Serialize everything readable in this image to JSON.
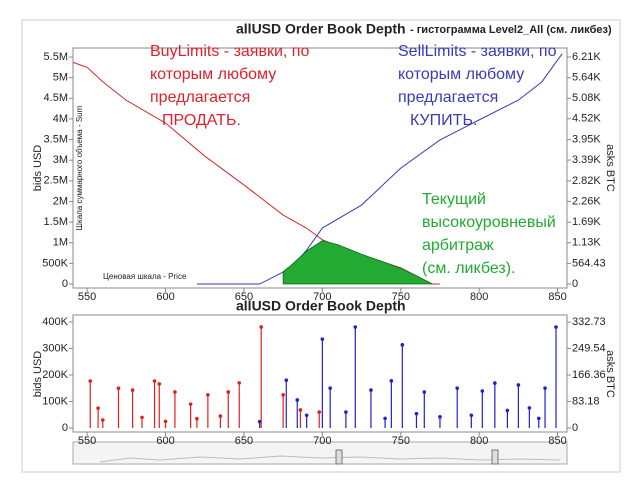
{
  "chart_data": [
    {
      "type": "line",
      "title": "allUSD Order Book Depth",
      "subtitle": "- гистограмма Level2_All (см. ликбез)",
      "y_label": "bids USD",
      "y2_label": "asks BTC",
      "y_inner_label": "Шкала суммарного объема - Sum",
      "x_inner_label": "Ценовая шкала - Price",
      "xlim": [
        541,
        856
      ],
      "xticks": [
        550,
        600,
        650,
        700,
        750,
        800,
        850
      ],
      "ylim": [
        -97000,
        5718000
      ],
      "yticks": [
        0,
        {
          "value": 500000,
          "label": "500K"
        },
        {
          "value": 1000000,
          "label": "1M"
        },
        {
          "value": 1500000,
          "label": "1.5M"
        },
        {
          "value": 2000000,
          "label": "2M"
        },
        {
          "value": 2500000,
          "label": "2.5M"
        },
        {
          "value": 3000000,
          "label": "3M"
        },
        {
          "value": 3500000,
          "label": "3.5M"
        },
        {
          "value": 4000000,
          "label": "4M"
        },
        {
          "value": 4500000,
          "label": "4.5M"
        },
        {
          "value": 5000000,
          "label": "5M"
        },
        {
          "value": 5500000,
          "label": "5.5M"
        }
      ],
      "y2lim": [
        -109,
        6456
      ],
      "y2ticks": [
        0,
        564.43,
        {
          "value": 1130,
          "label": "1.13K"
        },
        {
          "value": 1690,
          "label": "1.69K"
        },
        {
          "value": 2260,
          "label": "2.26K"
        },
        {
          "value": 2820,
          "label": "2.82K"
        },
        {
          "value": 3390,
          "label": "3.39K"
        },
        {
          "value": 3950,
          "label": "3.95K"
        },
        {
          "value": 4520,
          "label": "4.52K"
        },
        {
          "value": 5080,
          "label": "5.08K"
        },
        {
          "value": 5640,
          "label": "5.64K"
        },
        {
          "value": 6210,
          "label": "6.21K"
        }
      ],
      "series": [
        {
          "color": "#d62a2a",
          "x": [
            541,
            550,
            560,
            575,
            600,
            625,
            650,
            675,
            690,
            700,
            725,
            750,
            770,
            775
          ],
          "values": [
            5370000,
            5250000,
            4900000,
            4450000,
            3900000,
            3100000,
            2400000,
            1670000,
            1350000,
            1070000,
            700000,
            390000,
            0,
            0
          ]
        },
        {
          "color": "#3a3ab8",
          "axis": "y2",
          "x": [
            620,
            660,
            680,
            690,
            700,
            725,
            750,
            775,
            800,
            825,
            840,
            850,
            853
          ],
          "values": [
            0,
            0,
            437,
            930,
            1532,
            2160,
            3170,
            3940,
            4490,
            5030,
            5530,
            6130,
            6300
          ]
        },
        {
          "color": "#22aa33",
          "fill": true,
          "x": [
            675,
            680,
            690,
            700,
            710,
            725,
            740,
            750,
            760,
            770
          ],
          "values": [
            300000,
            450000,
            800000,
            1050000,
            950000,
            720000,
            520000,
            380000,
            200000,
            0
          ]
        }
      ],
      "annotations": [
        {
          "color": "#e0202a",
          "lines": [
            "BuyLimits - заявки, по",
            "которым любому",
            "предлагается",
            "ПРОДАТЬ."
          ]
        },
        {
          "color": "#3a3ab8",
          "lines": [
            "SellLimits - заявки, по",
            "которым любому",
            "предлагается",
            "КУПИТЬ."
          ]
        },
        {
          "color": "#22aa33",
          "lines": [
            "Текущий",
            "высокоуровневый",
            "арбитраж",
            "(см. ликбез)."
          ]
        }
      ]
    },
    {
      "type": "stem",
      "title": "allUSD Order Book Depth",
      "y_label": "bids USD",
      "y2_label": "asks BTC",
      "xlim": [
        541,
        856
      ],
      "xticks": [
        550,
        600,
        650,
        700,
        750,
        800,
        850
      ],
      "ylim": [
        -15000,
        426000
      ],
      "yticks": [
        0,
        {
          "value": 100000,
          "label": "100K"
        },
        {
          "value": 200000,
          "label": "200K"
        },
        {
          "value": 300000,
          "label": "300K"
        },
        {
          "value": 400000,
          "label": "400K"
        }
      ],
      "y2lim": [
        -12.6,
        354.7
      ],
      "y2ticks": [
        0,
        83.18,
        166.36,
        249.54,
        332.73
      ],
      "series": [
        {
          "color": "#e02020",
          "x": [
            552,
            557,
            560,
            570,
            579,
            585,
            593,
            596,
            600,
            606,
            616,
            620,
            627,
            635,
            640,
            647,
            661,
            675,
            686,
            698
          ],
          "values": [
            177000,
            75000,
            30000,
            150000,
            143000,
            40000,
            177000,
            166000,
            25000,
            136000,
            90000,
            35000,
            125000,
            45000,
            136000,
            170000,
            381000,
            125000,
            68000,
            60000
          ]
        },
        {
          "color": "#2020d0",
          "axis": "y2",
          "x": [
            660,
            677,
            684,
            690,
            700,
            705,
            715,
            721,
            731,
            740,
            744,
            751,
            760,
            765,
            775,
            786,
            795,
            802,
            810,
            818,
            825,
            832,
            838,
            842,
            849
          ],
          "values": [
            20,
            150,
            88,
            40,
            279,
            125,
            50,
            317,
            119,
            30,
            148,
            261,
            45,
            113,
            35,
            125,
            40,
            116,
            141,
            55,
            135,
            63,
            30,
            125,
            317
          ]
        }
      ]
    }
  ]
}
